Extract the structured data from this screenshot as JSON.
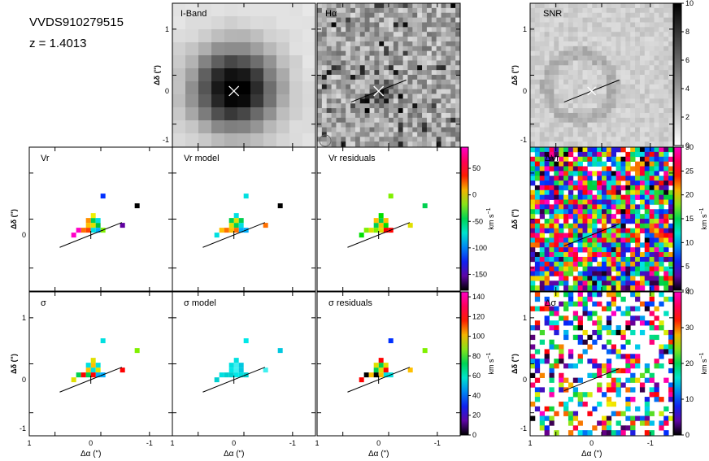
{
  "object": {
    "name": "VVDS910279515",
    "redshift_label": "z = 1.4013"
  },
  "chart_data": [
    {
      "type": "heatmap",
      "panel": "iband",
      "title": "I-Band",
      "ylabel": "Δδ (\")",
      "xlim": [
        1,
        -1.2
      ],
      "ylim": [
        -0.9,
        1.2
      ],
      "yticks": [
        "-1",
        "0",
        "1"
      ],
      "marker": "cross",
      "note": "broadband image, bright compact source at centre"
    },
    {
      "type": "heatmap",
      "panel": "ha",
      "title": "Hα",
      "xlim": [
        1,
        -1.2
      ],
      "ylim": [
        -0.9,
        1.2
      ],
      "note": "noisy emission-line map with axis line through centre"
    },
    {
      "type": "heatmap",
      "panel": "snr",
      "title": "SNR",
      "ylabel": "Δδ (\")",
      "yticks": [
        "-1",
        "0",
        "1"
      ],
      "colorbar": {
        "min": 0,
        "max": 10,
        "ticks": [
          "0",
          "2",
          "4",
          "6",
          "8",
          "10"
        ],
        "cmap": "gray"
      }
    },
    {
      "type": "heatmap",
      "panel": "vr",
      "title": "Vr",
      "ylabel": "Δδ (\")",
      "yticks": [
        "0"
      ]
    },
    {
      "type": "heatmap",
      "panel": "vr_model",
      "title": "Vr model"
    },
    {
      "type": "heatmap",
      "panel": "vr_res",
      "title": "Vr residuals",
      "colorbar": {
        "min": -180,
        "max": 90,
        "ticks": [
          "50",
          "0",
          "-50",
          "-100",
          "-150"
        ],
        "unit": "km s⁻¹",
        "cmap": "rainbow"
      }
    },
    {
      "type": "heatmap",
      "panel": "vr_err",
      "title": "ΔVr",
      "colorbar": {
        "min": 0,
        "max": 30,
        "ticks": [
          "0",
          "5",
          "10",
          "15",
          "20",
          "25",
          "30"
        ],
        "unit": "km s⁻¹",
        "cmap": "rainbow"
      }
    },
    {
      "type": "heatmap",
      "panel": "sig",
      "title": "σ",
      "ylabel": "Δδ (\")",
      "yticks": [
        "-1",
        "0",
        "1"
      ],
      "xlabel": "Δα (\")",
      "xticks": [
        "1",
        "0",
        "-1"
      ]
    },
    {
      "type": "heatmap",
      "panel": "sig_model",
      "title": "σ model",
      "xlabel": "Δα (\")",
      "xticks": [
        "1",
        "0",
        "-1"
      ]
    },
    {
      "type": "heatmap",
      "panel": "sig_res",
      "title": "σ residuals",
      "xlabel": "Δα (\")",
      "xticks": [
        "1",
        "0",
        "-1"
      ],
      "colorbar": {
        "min": 0,
        "max": 145,
        "ticks": [
          "140",
          "120",
          "100",
          "80",
          "60",
          "40",
          "20",
          "0"
        ],
        "unit": "km s⁻¹",
        "cmap": "rainbow"
      }
    },
    {
      "type": "heatmap",
      "panel": "sig_err",
      "title": "Δσ",
      "ylabel": "Δδ (\")",
      "yticks": [
        "-1",
        "0",
        "1"
      ],
      "xlabel": "Δα (\")",
      "xticks": [
        "1",
        "0",
        "-1"
      ],
      "colorbar": {
        "min": 0,
        "max": 40,
        "ticks": [
          "0",
          "10",
          "20",
          "30",
          "40"
        ],
        "unit": "km s⁻¹",
        "cmap": "rainbow"
      }
    }
  ],
  "labels": {
    "dec": "Δδ (\")",
    "ra": "Δα (\")",
    "unit_km": "km s",
    "unit_exp": "−1"
  }
}
